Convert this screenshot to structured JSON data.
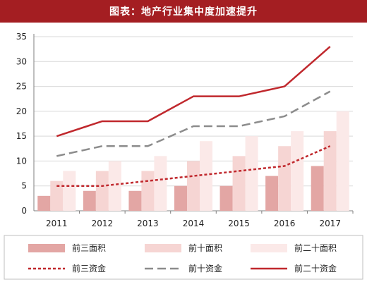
{
  "header": {
    "title": "图表：地产行业集中度加速提升"
  },
  "chart_data": {
    "type": "bar",
    "categories": [
      "2011",
      "2012",
      "2013",
      "2014",
      "2015",
      "2016",
      "2017"
    ],
    "ylim": [
      0,
      35
    ],
    "yticks": [
      "0",
      "5",
      "10",
      "15",
      "20",
      "25",
      "30",
      "35"
    ],
    "grid": true,
    "legend_position": "bottom",
    "series": [
      {
        "name": "前三面积",
        "kind": "bar",
        "color": "#e3a6a4",
        "values": [
          3,
          4,
          4,
          5,
          5,
          7,
          9
        ]
      },
      {
        "name": "前十面积",
        "kind": "bar",
        "color": "#f6d5d3",
        "values": [
          6,
          8,
          8,
          10,
          11,
          13,
          16
        ]
      },
      {
        "name": "前二十面积",
        "kind": "bar",
        "color": "#fbe9e8",
        "values": [
          8,
          10,
          11,
          14,
          15,
          16,
          20
        ]
      },
      {
        "name": "前三资金",
        "kind": "line",
        "style": "dotted",
        "color": "#c0282d",
        "values": [
          5,
          5,
          6,
          7,
          8,
          9,
          13
        ]
      },
      {
        "name": "前十资金",
        "kind": "line",
        "style": "dashed",
        "color": "#8c8c8c",
        "values": [
          11,
          13,
          13,
          17,
          17,
          19,
          24
        ]
      },
      {
        "name": "前二十资金",
        "kind": "line",
        "style": "solid",
        "color": "#c0282d",
        "values": [
          15,
          18,
          18,
          23,
          23,
          25,
          33
        ]
      }
    ]
  }
}
